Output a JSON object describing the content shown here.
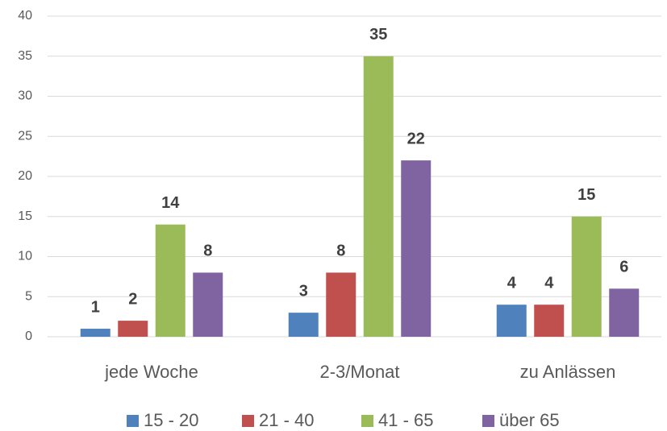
{
  "chart_data": {
    "type": "bar",
    "categories": [
      "jede Woche",
      "2-3/Monat",
      "zu Anlässen"
    ],
    "series": [
      {
        "name": "15 - 20",
        "color": "#4f81bd",
        "values": [
          1,
          3,
          4
        ]
      },
      {
        "name": "21 - 40",
        "color": "#c0504d",
        "values": [
          2,
          8,
          4
        ]
      },
      {
        "name": "41 - 65",
        "color": "#9bbb59",
        "values": [
          14,
          35,
          15
        ]
      },
      {
        "name": "über 65",
        "color": "#8064a2",
        "values": [
          8,
          22,
          6
        ]
      }
    ],
    "ylim": [
      0,
      40
    ],
    "yticks": [
      0,
      5,
      10,
      15,
      20,
      25,
      30,
      35,
      40
    ],
    "grid": true,
    "legend": "bottom"
  }
}
